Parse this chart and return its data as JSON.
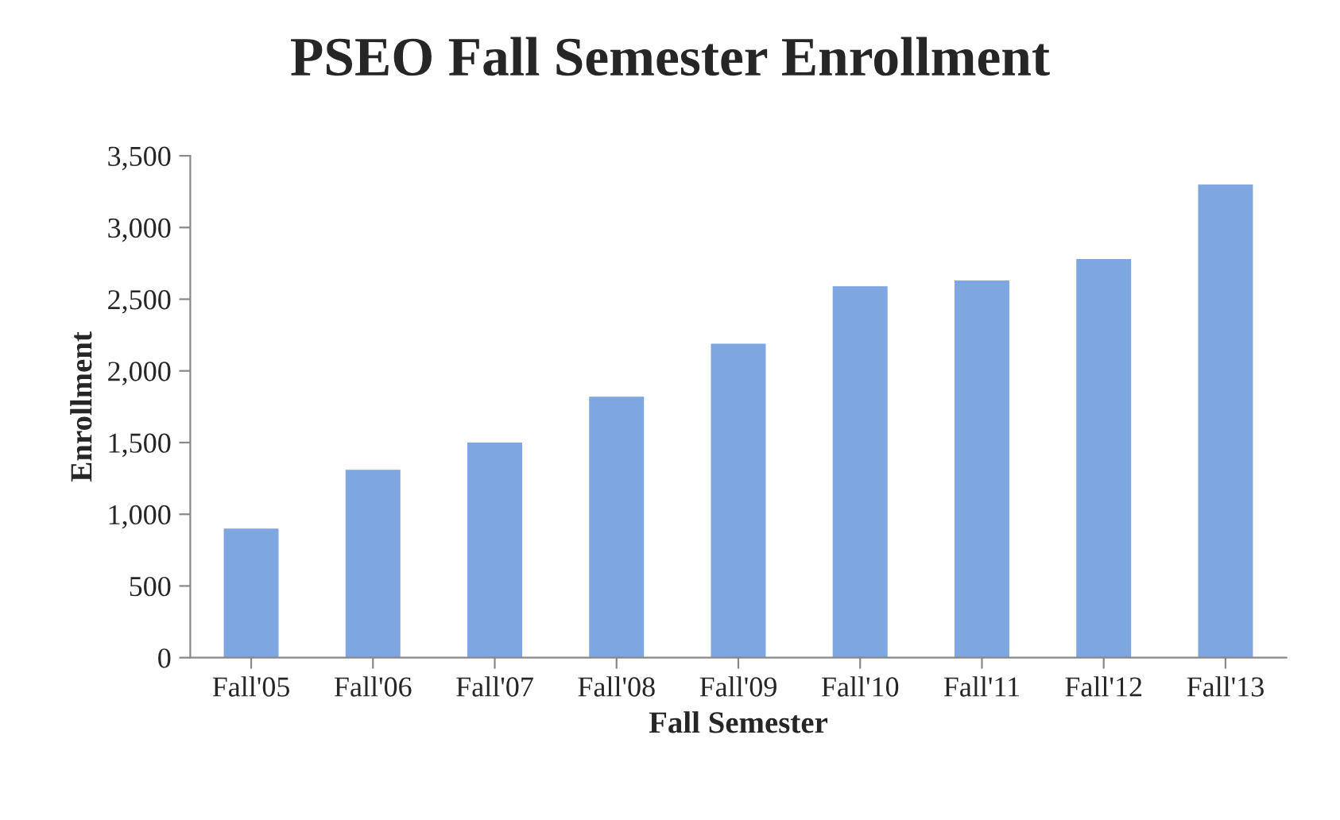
{
  "chart_data": {
    "type": "bar",
    "title": "PSEO Fall Semester Enrollment",
    "xlabel": "Fall Semester",
    "ylabel": "Enrollment",
    "categories": [
      "Fall'05",
      "Fall'06",
      "Fall'07",
      "Fall'08",
      "Fall'09",
      "Fall'10",
      "Fall'11",
      "Fall'12",
      "Fall'13"
    ],
    "values": [
      900,
      1310,
      1500,
      1820,
      2190,
      2590,
      2630,
      2780,
      3300
    ],
    "color": "#7ea6e0",
    "ylim": [
      0,
      3500
    ],
    "yticks": [
      {
        "value": 0,
        "label": "0"
      },
      {
        "value": 500,
        "label": "500"
      },
      {
        "value": 1000,
        "label": "1,000"
      },
      {
        "value": 1500,
        "label": "1,500"
      },
      {
        "value": 2000,
        "label": "2,000"
      },
      {
        "value": 2500,
        "label": "2,500"
      },
      {
        "value": 3000,
        "label": "3,000"
      },
      {
        "value": 3500,
        "label": "3,500"
      }
    ],
    "grid": false,
    "legend": false
  }
}
